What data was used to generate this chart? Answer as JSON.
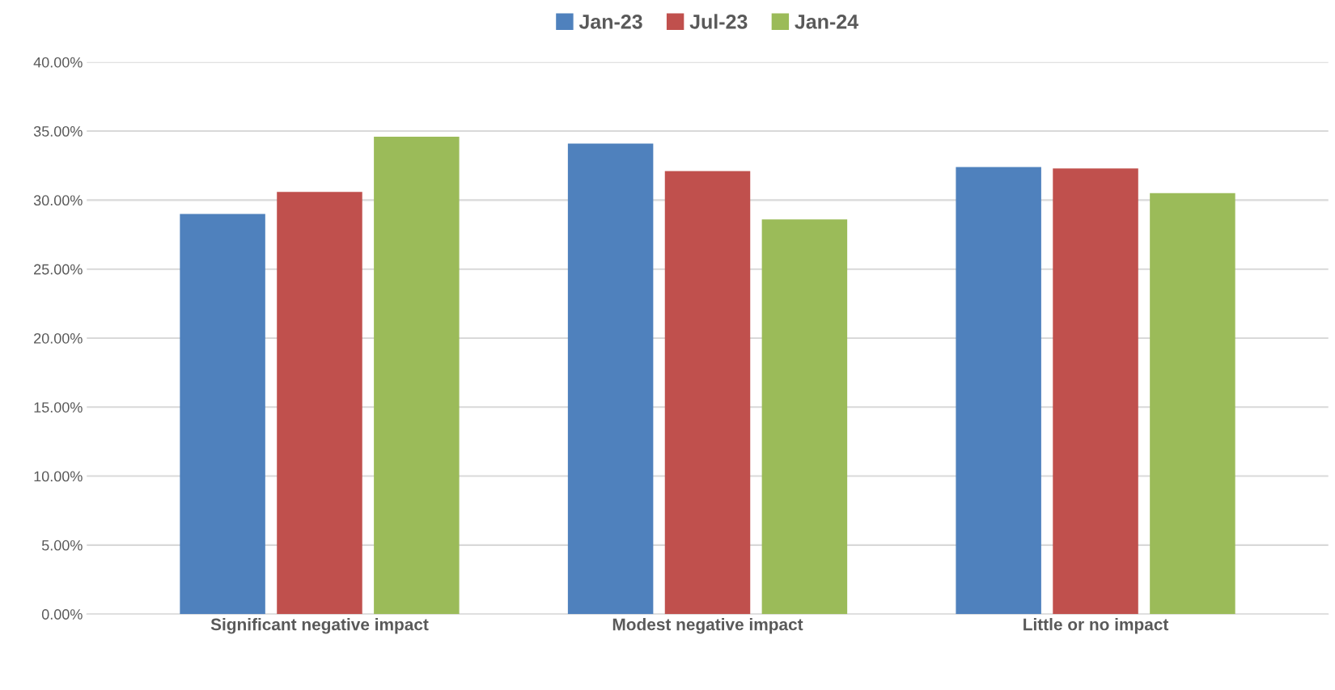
{
  "chart_data": {
    "type": "bar",
    "categories": [
      "Significant negative impact",
      "Modest negative impact",
      "Little or no impact"
    ],
    "series": [
      {
        "name": "Jan-23",
        "color": "#4f81bd",
        "values": [
          29.0,
          34.1,
          32.4
        ]
      },
      {
        "name": "Jul-23",
        "color": "#c0504d",
        "values": [
          30.6,
          32.1,
          32.3
        ]
      },
      {
        "name": "Jan-24",
        "color": "#9bbb59",
        "values": [
          34.6,
          28.6,
          30.5
        ]
      }
    ],
    "ylim": [
      0,
      40
    ],
    "yticks": [
      {
        "value": 0,
        "label": "0.00%"
      },
      {
        "value": 5,
        "label": "5.00%"
      },
      {
        "value": 10,
        "label": "10.00%"
      },
      {
        "value": 15,
        "label": "15.00%"
      },
      {
        "value": 20,
        "label": "20.00%"
      },
      {
        "value": 25,
        "label": "25.00%"
      },
      {
        "value": 30,
        "label": "30.00%"
      },
      {
        "value": 35,
        "label": "35.00%"
      },
      {
        "value": 40,
        "label": "40.00%"
      }
    ],
    "grid": "y",
    "legend": "top"
  }
}
